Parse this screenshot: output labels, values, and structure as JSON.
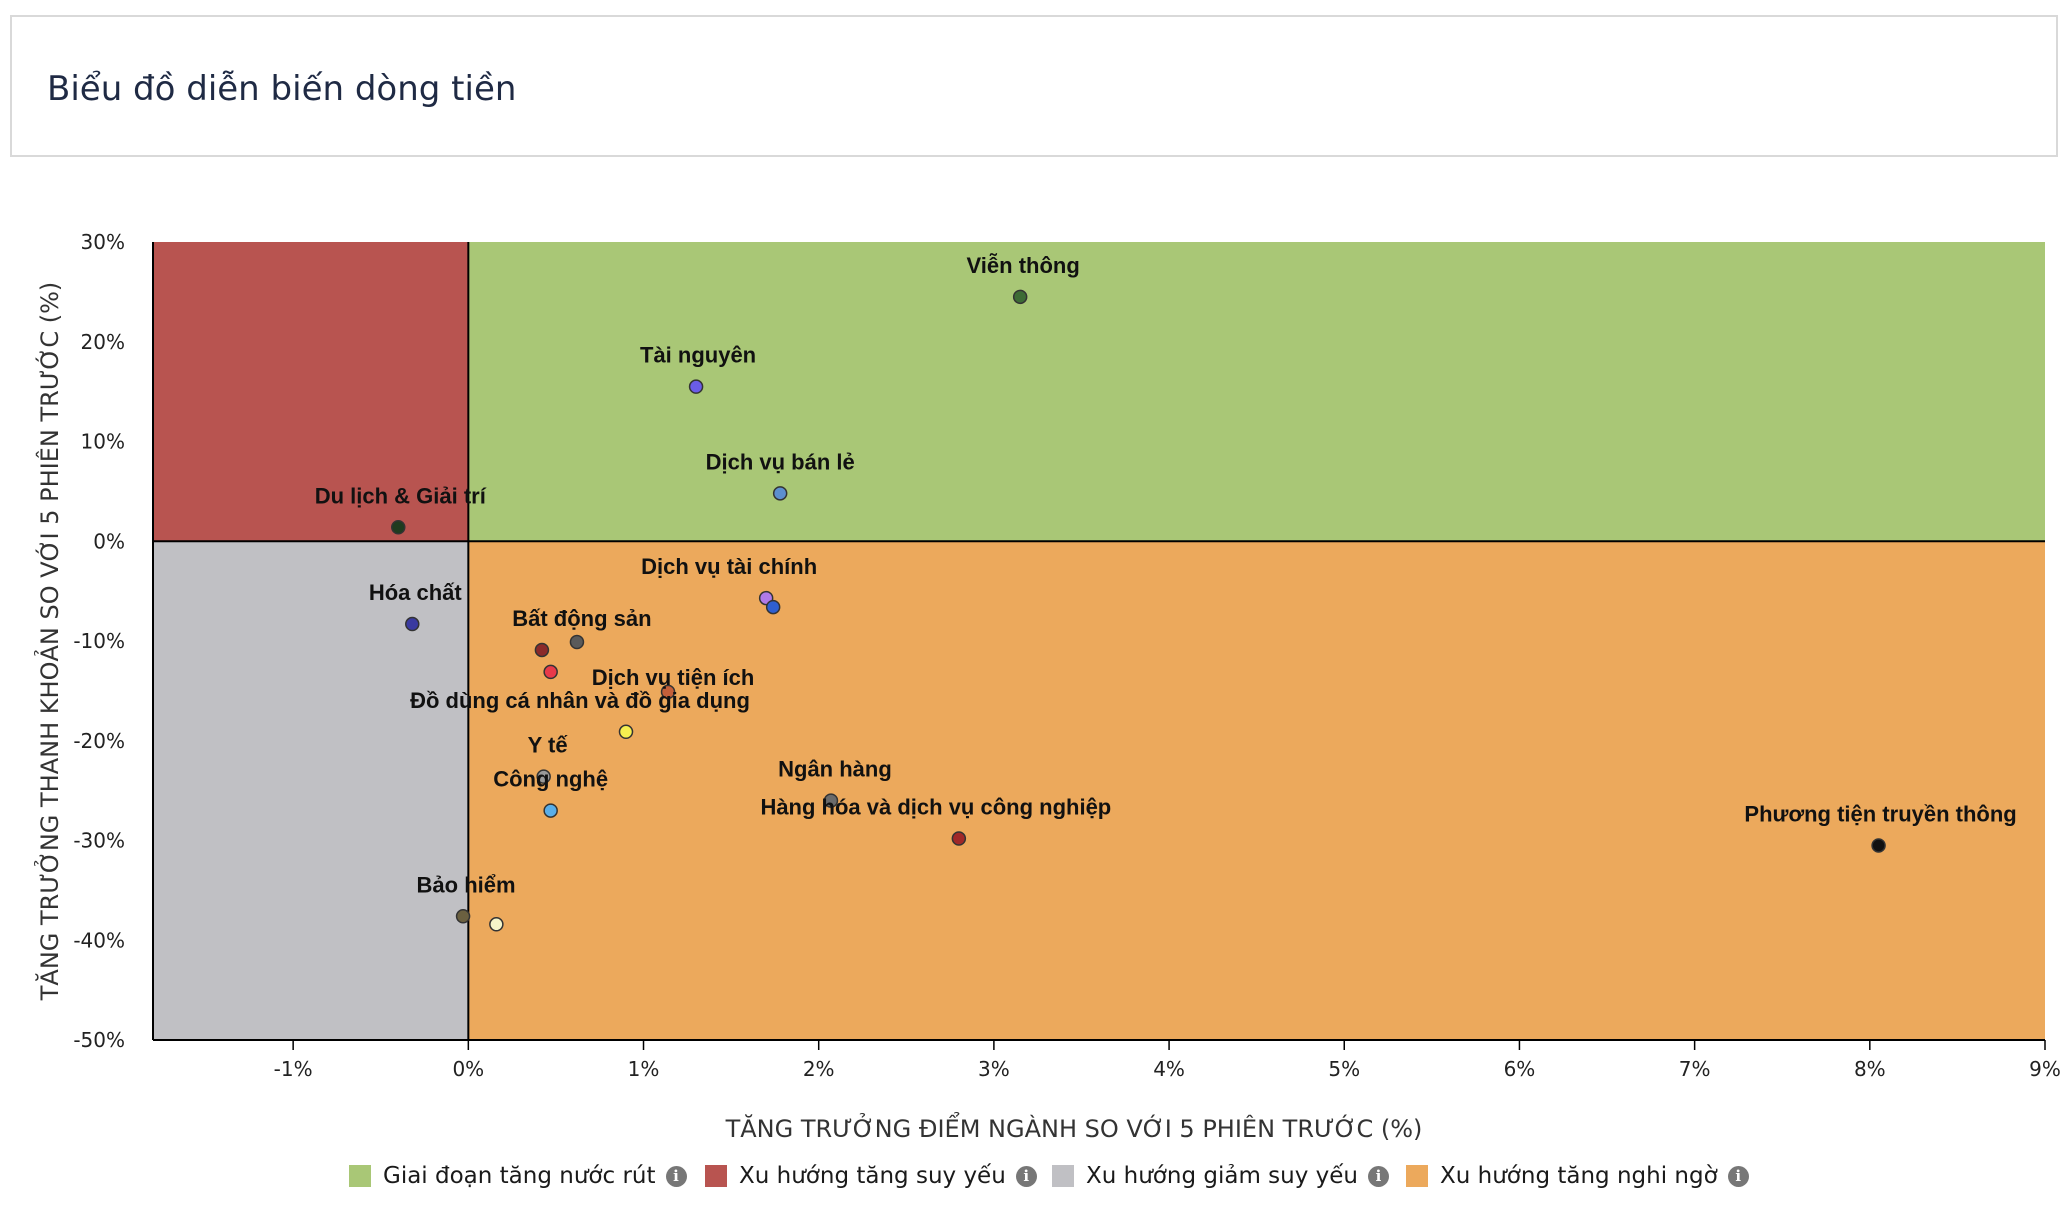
{
  "header": {
    "title": "Biểu đồ diễn biến dòng tiền"
  },
  "chart_data": {
    "type": "scatter",
    "title": "Biểu đồ diễn biến dòng tiền",
    "xlabel": "TĂNG TRƯỞNG ĐIỂM NGÀNH SO VỚI 5 PHIÊN TRƯỚC (%)",
    "ylabel": "TĂNG TRƯỞNG THANH KHOẢN SO VỚI 5 PHIÊN TRƯỚC (%)",
    "xlim": [
      -1.8,
      9
    ],
    "ylim": [
      -50,
      30
    ],
    "x_ticks": [
      -1,
      0,
      1,
      2,
      3,
      4,
      5,
      6,
      7,
      8,
      9
    ],
    "x_tick_labels": [
      "-1%",
      "0%",
      "1%",
      "2%",
      "3%",
      "4%",
      "5%",
      "6%",
      "7%",
      "8%",
      "9%"
    ],
    "y_ticks": [
      30,
      20,
      10,
      0,
      -10,
      -20,
      -30,
      -40,
      -50
    ],
    "y_tick_labels": [
      "30%",
      "20%",
      "10%",
      "0%",
      "-10%",
      "-20%",
      "-30%",
      "-40%",
      "-50%"
    ],
    "quadrants": [
      {
        "name": "Giai đoạn tăng nước rút",
        "color": "#a9c776",
        "region": "x>=0,y>=0"
      },
      {
        "name": "Xu hướng tăng suy yếu",
        "color": "#b85450",
        "region": "x<0,y>=0"
      },
      {
        "name": "Xu hướng giảm suy yếu",
        "color": "#c0c0c4",
        "region": "x<0,y<0"
      },
      {
        "name": "Xu hướng tăng nghi ngờ",
        "color": "#eca95c",
        "region": "x>=0,y<0"
      }
    ],
    "points": [
      {
        "label": "Viễn thông",
        "x": 3.15,
        "y": 24.5,
        "color": "#3d6b35"
      },
      {
        "label": "Tài nguyên",
        "x": 1.3,
        "y": 15.5,
        "color": "#6a5ce8"
      },
      {
        "label": "Dịch vụ bán lẻ",
        "x": 1.78,
        "y": 4.8,
        "color": "#5c8fcf"
      },
      {
        "label": "Du lịch & Giải trí",
        "x": -0.4,
        "y": 1.4,
        "color": "#1f3b1f"
      },
      {
        "label": "Hóa chất",
        "x": -0.32,
        "y": -8.3,
        "color": "#3a3aa0"
      },
      {
        "label": "Dịch vụ tài chính",
        "x": 1.7,
        "y": -5.7,
        "color": "#b07ae8"
      },
      {
        "label": "",
        "x": 1.74,
        "y": -6.6,
        "color": "#2f5fd0"
      },
      {
        "label": "Bất động sản",
        "x": 0.42,
        "y": -10.9,
        "color": "#8b2a2a"
      },
      {
        "label": "",
        "x": 0.62,
        "y": -10.1,
        "color": "#5a5a5a"
      },
      {
        "label": "",
        "x": 0.47,
        "y": -13.1,
        "color": "#e83a4a"
      },
      {
        "label": "Dịch vụ tiện ích",
        "x": 1.14,
        "y": -15.1,
        "color": "#c4603a"
      },
      {
        "label": "Đồ dùng cá nhân và đồ gia dụng",
        "x": 0.9,
        "y": -19.1,
        "color": "#f5ef50"
      },
      {
        "label": "Y tế",
        "x": 0.43,
        "y": -23.6,
        "color": "#9a9a9a"
      },
      {
        "label": "Công nghệ",
        "x": 0.47,
        "y": -27.0,
        "color": "#5aaee8"
      },
      {
        "label": "Ngân hàng",
        "x": 2.07,
        "y": -26.0,
        "color": "#6b6b6b"
      },
      {
        "label": "Hàng hóa và dịch vụ công nghiệp",
        "x": 2.8,
        "y": -29.8,
        "color": "#a02828"
      },
      {
        "label": "Phương tiện truyền thông",
        "x": 8.05,
        "y": -30.5,
        "color": "#111111"
      },
      {
        "label": "Bảo hiểm",
        "x": -0.03,
        "y": -37.6,
        "color": "#6b6040"
      },
      {
        "label": "",
        "x": 0.16,
        "y": -38.4,
        "color": "#f5f5c8"
      }
    ]
  },
  "legend": {
    "items": [
      {
        "label": "Giai đoạn tăng nước rút",
        "color": "#a9c776"
      },
      {
        "label": "Xu hướng tăng suy yếu",
        "color": "#b85450"
      },
      {
        "label": "Xu hướng giảm suy yếu",
        "color": "#c0c0c4"
      },
      {
        "label": "Xu hướng tăng nghi ngờ",
        "color": "#eca95c"
      }
    ],
    "info_icon": "info-icon",
    "info_glyph": "i"
  }
}
